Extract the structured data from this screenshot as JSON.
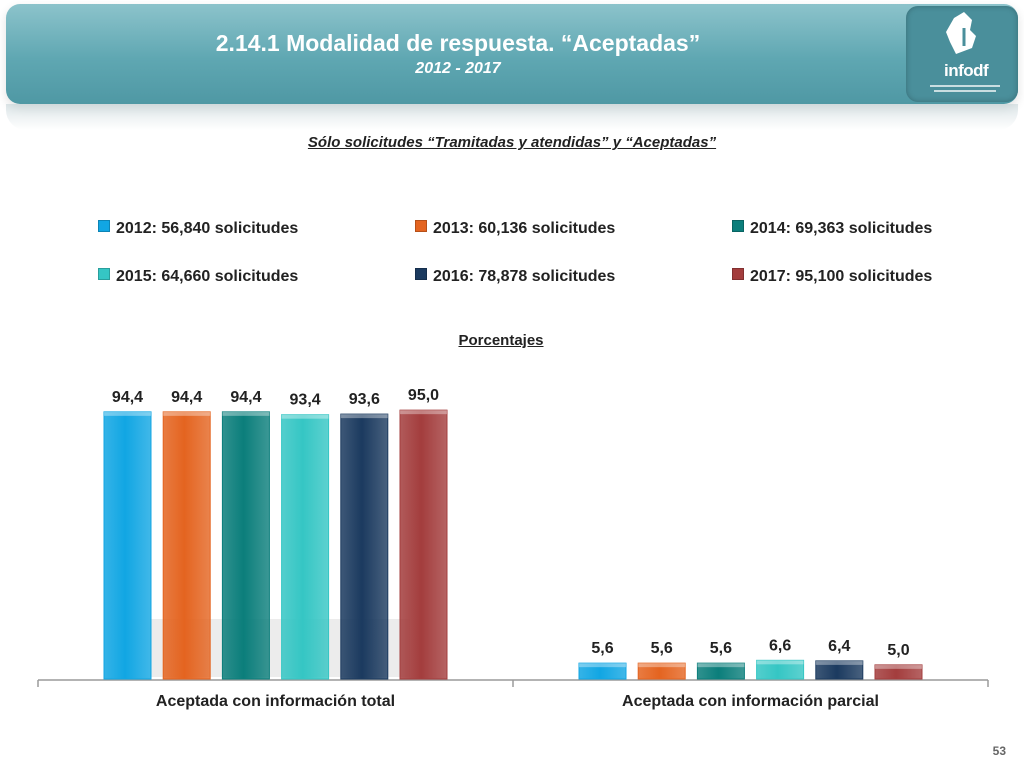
{
  "header": {
    "title": "2.14.1 Modalidad de respuesta. “Aceptadas”",
    "subtitle": "2012 - 2017",
    "logo_text": "infodf"
  },
  "note": "Sólo solicitudes “Tramitadas y atendidas” y “Aceptadas”",
  "legend": [
    {
      "label": "2012: 56,840 solicitudes",
      "color": "#11a6e3"
    },
    {
      "label": "2013: 60,136 solicitudes",
      "color": "#e46420"
    },
    {
      "label": "2014: 69,363 solicitudes",
      "color": "#0b7e7b"
    },
    {
      "label": "2015: 64,660 solicitudes",
      "color": "#35c6c4"
    },
    {
      "label": "2016: 78,878 solicitudes",
      "color": "#1b3a5f"
    },
    {
      "label": "2017: 95,100 solicitudes",
      "color": "#a33d3d"
    }
  ],
  "chart_heading": "Porcentajes",
  "page_number": "53",
  "chart_data": {
    "type": "bar",
    "title": "Porcentajes",
    "categories": [
      "Aceptada con información total",
      "Aceptada con información parcial"
    ],
    "series": [
      {
        "name": "2012: 56,840 solicitudes",
        "values": [
          94.4,
          5.6
        ],
        "labels": [
          "94,4",
          "5,6"
        ],
        "color": "#11a6e3"
      },
      {
        "name": "2013: 60,136 solicitudes",
        "values": [
          94.4,
          5.6
        ],
        "labels": [
          "94,4",
          "5,6"
        ],
        "color": "#e46420"
      },
      {
        "name": "2014: 69,363 solicitudes",
        "values": [
          94.4,
          5.6
        ],
        "labels": [
          "94,4",
          "5,6"
        ],
        "color": "#0b7e7b"
      },
      {
        "name": "2015: 64,660 solicitudes",
        "values": [
          93.4,
          6.6
        ],
        "labels": [
          "93,4",
          "6,6"
        ],
        "color": "#35c6c4"
      },
      {
        "name": "2016: 78,878 solicitudes",
        "values": [
          93.6,
          6.4
        ],
        "labels": [
          "93,6",
          "6,4"
        ],
        "color": "#1b3a5f"
      },
      {
        "name": "2017: 95,100 solicitudes",
        "values": [
          95.0,
          5.0
        ],
        "labels": [
          "95,0",
          "5,0"
        ],
        "color": "#a33d3d"
      }
    ],
    "ylim": [
      0,
      100
    ],
    "grid": false,
    "legend_position": "top"
  }
}
